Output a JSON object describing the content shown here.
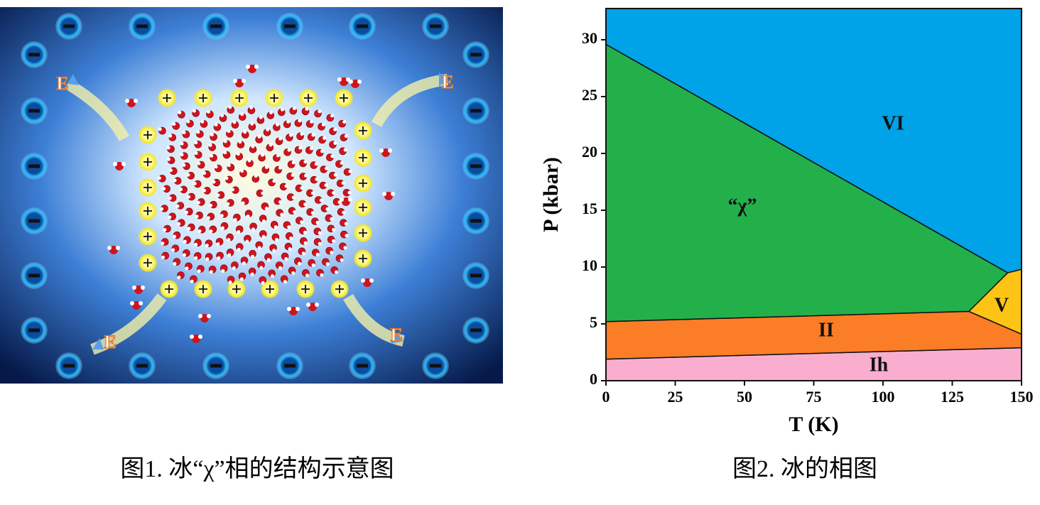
{
  "figure1": {
    "field_label": "E",
    "caption": "图1. 冰“χ”相的结构示意图"
  },
  "chart_data": {
    "type": "phase-diagram",
    "xlabel": "T (K)",
    "ylabel": "P (kbar)",
    "xlim": [
      0,
      150
    ],
    "ylim": [
      0,
      32.75
    ],
    "xticks": [
      0,
      25,
      50,
      75,
      100,
      125,
      150
    ],
    "yticks": [
      0,
      5,
      10,
      15,
      20,
      25,
      30
    ],
    "regions": [
      {
        "name": "Ih",
        "color": "#f9aed0",
        "x": [
          0,
          150,
          150,
          0
        ],
        "y": [
          0,
          0,
          2.9,
          1.9
        ]
      },
      {
        "name": "II",
        "color": "#fb7d26",
        "x": [
          0,
          150,
          150,
          131,
          0
        ],
        "y": [
          1.9,
          2.9,
          4.1,
          6.1,
          5.2
        ]
      },
      {
        "name": "V",
        "color": "#fdc315",
        "x": [
          131,
          150,
          150,
          145
        ],
        "y": [
          6.1,
          4.1,
          9.8,
          9.5
        ]
      },
      {
        "name": "“χ”",
        "color": "#23b04b",
        "x": [
          0,
          131,
          145,
          0
        ],
        "y": [
          5.2,
          6.1,
          9.5,
          29.6
        ]
      },
      {
        "name": "VI",
        "color": "#00a2e8",
        "x": [
          0,
          145,
          150,
          150,
          0
        ],
        "y": [
          29.6,
          9.5,
          9.8,
          32.75,
          32.75
        ]
      }
    ]
  },
  "figure2": {
    "caption": "图2. 冰的相图"
  }
}
